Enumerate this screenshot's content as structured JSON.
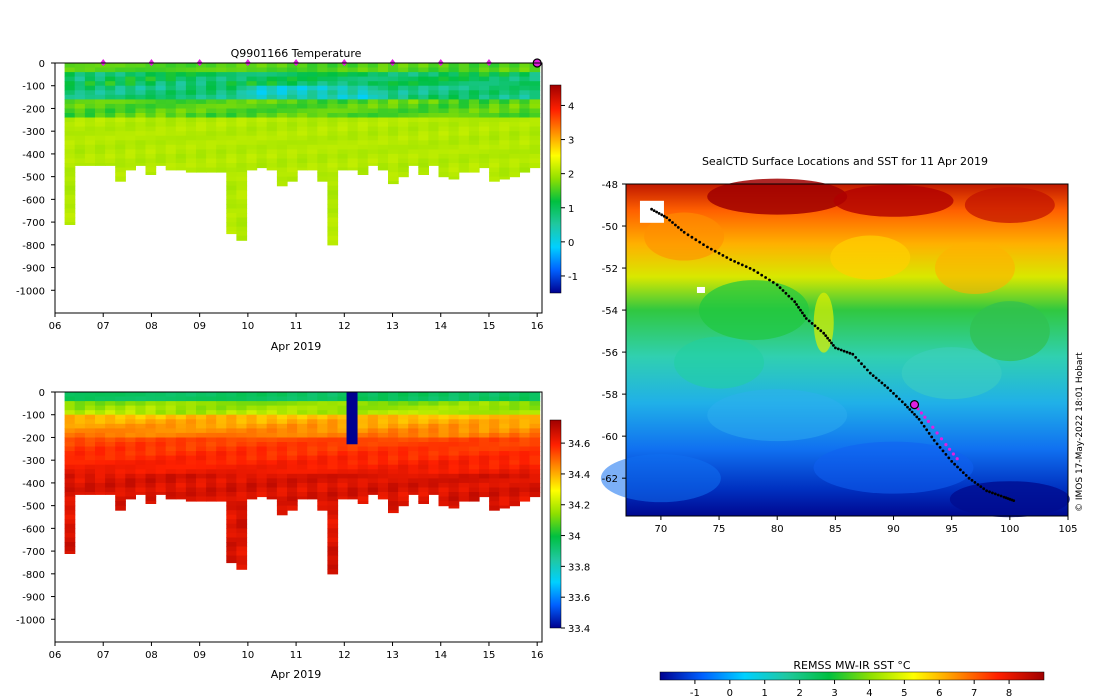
{
  "chart_data": [
    {
      "type": "heatmap",
      "title": "Q9901166  Temperature",
      "xlabel": "Apr 2019",
      "ylabel": "",
      "x_ticks": [
        "06",
        "07",
        "08",
        "09",
        "10",
        "11",
        "12",
        "13",
        "14",
        "15",
        "16"
      ],
      "y_ticks": [
        "0",
        "-100",
        "-200",
        "-300",
        "-400",
        "-500",
        "-600",
        "-700",
        "-800",
        "-900",
        "-1000"
      ],
      "xlim": [
        6.0,
        16.1
      ],
      "ylim": [
        -1100,
        0
      ],
      "colorbar": {
        "ticks": [
          "4",
          "3",
          "2",
          "1",
          "0",
          "-1"
        ],
        "range": [
          -1.5,
          4.6
        ],
        "colors": [
          "#00008f",
          "#0060ff",
          "#00d0ff",
          "#20c8a0",
          "#00c040",
          "#90e000",
          "#ffff00",
          "#ff9000",
          "#ff2000",
          "#a00000"
        ]
      },
      "surface_markers": [
        7,
        8,
        9,
        10,
        11,
        12,
        13,
        14,
        15
      ],
      "current_marker": 16,
      "profile_max_depths": [
        -710,
        -450,
        -450,
        -450,
        -450,
        -520,
        -470,
        -450,
        -490,
        -450,
        -470,
        -470,
        -480,
        -480,
        -480,
        -480,
        -750,
        -780,
        -470,
        -460,
        -470,
        -540,
        -520,
        -470,
        -470,
        -520,
        -800,
        -470,
        -470,
        -490,
        -450,
        -470,
        -530,
        -500,
        -450,
        -490,
        -450,
        -500,
        -510,
        -480,
        -480,
        -460,
        -520,
        -510,
        -500,
        -480,
        -460
      ],
      "profile_columns": 47,
      "notes": "Temperature vs depth per profile: ~2 degC near surface, cold layer ~0-1 degC at 100-150 m, ~2 degC below"
    },
    {
      "type": "heatmap",
      "title": "",
      "xlabel": "Apr 2019",
      "ylabel": "",
      "x_ticks": [
        "06",
        "07",
        "08",
        "09",
        "10",
        "11",
        "12",
        "13",
        "14",
        "15",
        "16"
      ],
      "y_ticks": [
        "0",
        "-100",
        "-200",
        "-300",
        "-400",
        "-500",
        "-600",
        "-700",
        "-800",
        "-900",
        "-1000"
      ],
      "xlim": [
        6.0,
        16.1
      ],
      "ylim": [
        -1100,
        0
      ],
      "colorbar": {
        "ticks": [
          "34.6",
          "34.4",
          "34.2",
          "34",
          "33.8",
          "33.6",
          "33.4"
        ],
        "range": [
          33.4,
          34.75
        ],
        "colors": [
          "#00008f",
          "#0060ff",
          "#00d0ff",
          "#20c8a0",
          "#00c040",
          "#90e000",
          "#ffff00",
          "#ff9000",
          "#ff2000",
          "#a00000"
        ]
      },
      "anomaly_profile": {
        "x": 12.15,
        "depth_range": [
          0,
          -230
        ],
        "value": 33.4
      },
      "notes": "Salinity vs depth: ~34.0 near surface increasing to ~34.7 at depth"
    },
    {
      "type": "heatmap",
      "title": "SealCTD Surface Locations and SST for 11 Apr 2019",
      "xlabel": "",
      "ylabel": "",
      "x_ticks": [
        "70",
        "75",
        "80",
        "85",
        "90",
        "95",
        "100",
        "105"
      ],
      "y_ticks": [
        "-48",
        "-50",
        "-52",
        "-54",
        "-56",
        "-58",
        "-60",
        "-62"
      ],
      "xlim": [
        67,
        105
      ],
      "ylim": [
        -63.8,
        -48
      ],
      "track": [
        [
          69.2,
          -49.2
        ],
        [
          70.5,
          -49.6
        ],
        [
          72,
          -50.3
        ],
        [
          74,
          -51
        ],
        [
          76,
          -51.6
        ],
        [
          78,
          -52.1
        ],
        [
          80,
          -52.8
        ],
        [
          81.5,
          -53.6
        ],
        [
          82.5,
          -54.4
        ],
        [
          84,
          -55.1
        ],
        [
          85,
          -55.8
        ],
        [
          86.5,
          -56.1
        ],
        [
          88,
          -57
        ],
        [
          89.5,
          -57.7
        ],
        [
          91,
          -58.5
        ],
        [
          92.2,
          -59.2
        ],
        [
          93.5,
          -60.2
        ],
        [
          95,
          -61.2
        ],
        [
          96.5,
          -62
        ],
        [
          98,
          -62.6
        ],
        [
          99.5,
          -62.9
        ],
        [
          100.5,
          -63.1
        ]
      ],
      "recent_track": [
        [
          91.8,
          -58.5
        ],
        [
          93,
          -59.3
        ],
        [
          94.5,
          -60.4
        ],
        [
          95.8,
          -61.3
        ]
      ],
      "current_position": [
        91.8,
        -58.5
      ],
      "colorbar": {
        "label": "REMSS MW-IR SST °C",
        "ticks": [
          "-1",
          "0",
          "1",
          "2",
          "3",
          "4",
          "5",
          "6",
          "7",
          "8"
        ],
        "range": [
          -2,
          9
        ],
        "colors": [
          "#00008f",
          "#0060ff",
          "#00d0ff",
          "#20c8a0",
          "#00c040",
          "#90e000",
          "#ffff00",
          "#ff9000",
          "#ff2000",
          "#a00000"
        ]
      },
      "credit": "© IMOS 17-May-2022 18:01 Hobart"
    }
  ]
}
